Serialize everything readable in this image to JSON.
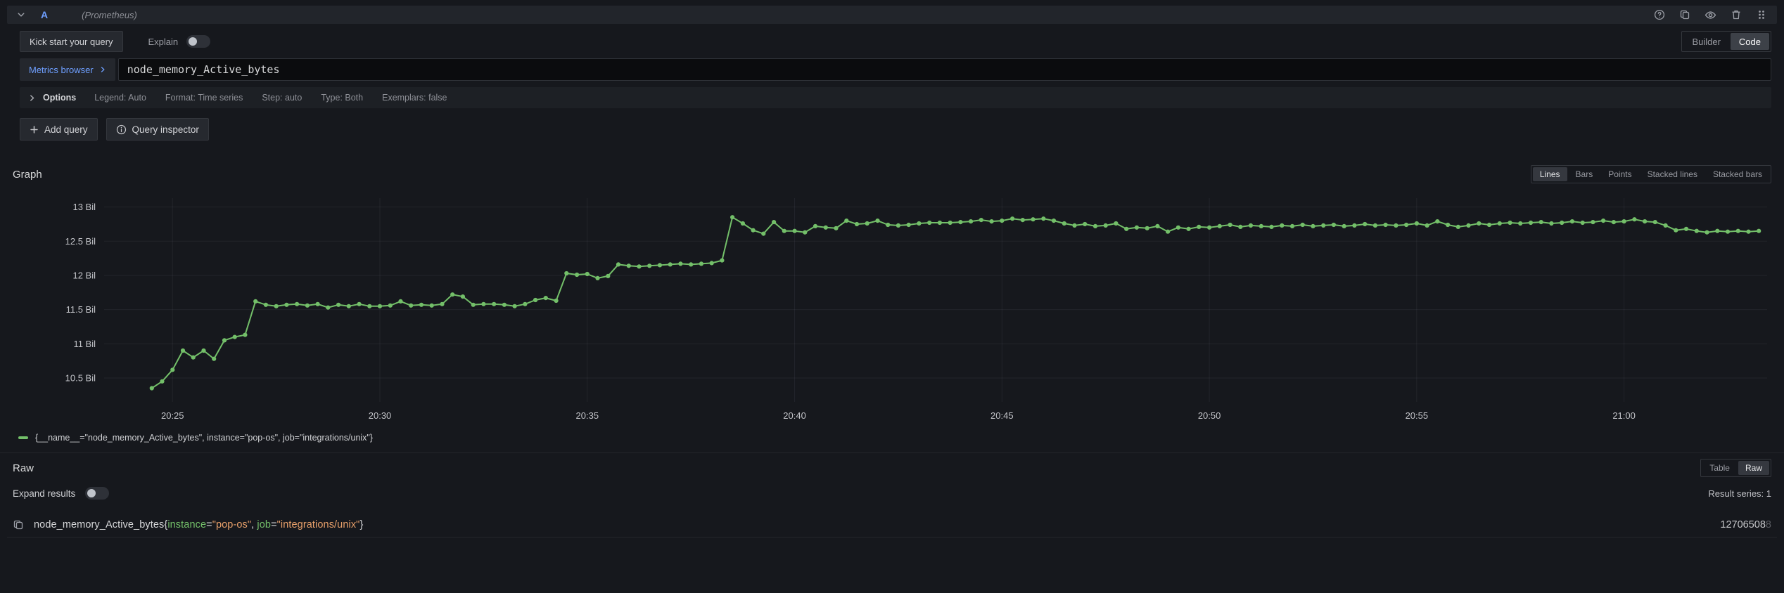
{
  "colors": {
    "accent_blue": "#6e9fff",
    "series_green": "#73bf69",
    "label_green": "#73bf69",
    "value_orange": "#e8a06a",
    "active_segment_bg": "#3d4148"
  },
  "query_editor": {
    "ref_id": "A",
    "datasource_hint": "(Prometheus)",
    "kick_start_label": "Kick start your query",
    "explain_label": "Explain",
    "mode_options": [
      "Builder",
      "Code"
    ],
    "active_mode": "Code",
    "metrics_browser_label": "Metrics browser",
    "query_value": "node_memory_Active_bytes",
    "options_summary": {
      "options_label": "Options",
      "items": [
        "Legend: Auto",
        "Format: Time series",
        "Step: auto",
        "Type: Both",
        "Exemplars: false"
      ]
    },
    "add_query_label": "Add query",
    "query_inspector_label": "Query inspector"
  },
  "graph_panel": {
    "title": "Graph",
    "view_modes": [
      "Lines",
      "Bars",
      "Points",
      "Stacked lines",
      "Stacked bars"
    ],
    "active_mode": "Lines",
    "legend_text": "{__name__=\"node_memory_Active_bytes\", instance=\"pop-os\", job=\"integrations/unix\"}"
  },
  "raw_panel": {
    "title": "Raw",
    "tabs": [
      "Table",
      "Raw"
    ],
    "active_tab": "Raw",
    "expand_results_label": "Expand results",
    "result_series_label": "Result series: 1",
    "query_parts": [
      {
        "text": "node_memory_Active_bytes{",
        "type": "plain"
      },
      {
        "text": "instance",
        "type": "label"
      },
      {
        "text": "=",
        "type": "plain"
      },
      {
        "text": "\"pop-os\"",
        "type": "value"
      },
      {
        "text": ", ",
        "type": "plain"
      },
      {
        "text": "job",
        "type": "label"
      },
      {
        "text": "=",
        "type": "plain"
      },
      {
        "text": "\"integrations/unix\"",
        "type": "value"
      },
      {
        "text": "}",
        "type": "plain"
      }
    ],
    "value_visible": "12706508",
    "value_faded": "8"
  },
  "chart_data": {
    "type": "line",
    "title": "Graph",
    "series_name": "{__name__=\"node_memory_Active_bytes\", instance=\"pop-os\", job=\"integrations/unix\"}",
    "color": "#73bf69",
    "unit": "Bil (bytes x 1e9)",
    "grid": true,
    "legend_position": "bottom-left",
    "xlim_minutes": [
      1223.35,
      1263.45
    ],
    "ylim": [
      10.15,
      13.13
    ],
    "x_axis": {
      "ticks": [
        {
          "m": 1225,
          "label": "20:25"
        },
        {
          "m": 1230,
          "label": "20:30"
        },
        {
          "m": 1235,
          "label": "20:35"
        },
        {
          "m": 1240,
          "label": "20:40"
        },
        {
          "m": 1245,
          "label": "20:45"
        },
        {
          "m": 1250,
          "label": "20:50"
        },
        {
          "m": 1255,
          "label": "20:55"
        },
        {
          "m": 1260,
          "label": "21:00"
        }
      ]
    },
    "y_axis": {
      "ticks": [
        {
          "v": 10.5,
          "label": "10.5 Bil"
        },
        {
          "v": 11,
          "label": "11 Bil"
        },
        {
          "v": 11.5,
          "label": "11.5 Bil"
        },
        {
          "v": 12,
          "label": "12 Bil"
        },
        {
          "v": 12.5,
          "label": "12.5 Bil"
        },
        {
          "v": 13,
          "label": "13 Bil"
        }
      ]
    },
    "x_start_minutes": 1224.5,
    "x_interval_minutes": 0.25,
    "values_bil": [
      10.35,
      10.45,
      10.62,
      10.9,
      10.8,
      10.9,
      10.78,
      11.05,
      11.1,
      11.13,
      11.62,
      11.57,
      11.55,
      11.57,
      11.58,
      11.56,
      11.58,
      11.53,
      11.57,
      11.55,
      11.58,
      11.55,
      11.55,
      11.56,
      11.62,
      11.56,
      11.57,
      11.56,
      11.58,
      11.72,
      11.69,
      11.57,
      11.58,
      11.58,
      11.57,
      11.55,
      11.58,
      11.64,
      11.67,
      11.63,
      12.03,
      12.01,
      12.02,
      11.96,
      11.99,
      12.16,
      12.14,
      12.13,
      12.14,
      12.15,
      12.16,
      12.17,
      12.16,
      12.17,
      12.18,
      12.22,
      12.85,
      12.76,
      12.66,
      12.61,
      12.78,
      12.65,
      12.65,
      12.63,
      12.72,
      12.7,
      12.69,
      12.8,
      12.75,
      12.76,
      12.8,
      12.74,
      12.73,
      12.74,
      12.76,
      12.77,
      12.77,
      12.77,
      12.78,
      12.79,
      12.81,
      12.79,
      12.8,
      12.83,
      12.81,
      12.82,
      12.83,
      12.8,
      12.76,
      12.73,
      12.75,
      12.72,
      12.73,
      12.76,
      12.68,
      12.7,
      12.69,
      12.72,
      12.64,
      12.7,
      12.68,
      12.71,
      12.7,
      12.72,
      12.74,
      12.71,
      12.73,
      12.72,
      12.71,
      12.73,
      12.72,
      12.74,
      12.72,
      12.73,
      12.74,
      12.72,
      12.73,
      12.75,
      12.73,
      12.74,
      12.73,
      12.74,
      12.76,
      12.73,
      12.79,
      12.74,
      12.71,
      12.73,
      12.76,
      12.74,
      12.76,
      12.77,
      12.76,
      12.77,
      12.78,
      12.76,
      12.77,
      12.79,
      12.77,
      12.78,
      12.8,
      12.78,
      12.79,
      12.82,
      12.79,
      12.78,
      12.73,
      12.66,
      12.68,
      12.65,
      12.63,
      12.65,
      12.64,
      12.65,
      12.64,
      12.65
    ]
  }
}
